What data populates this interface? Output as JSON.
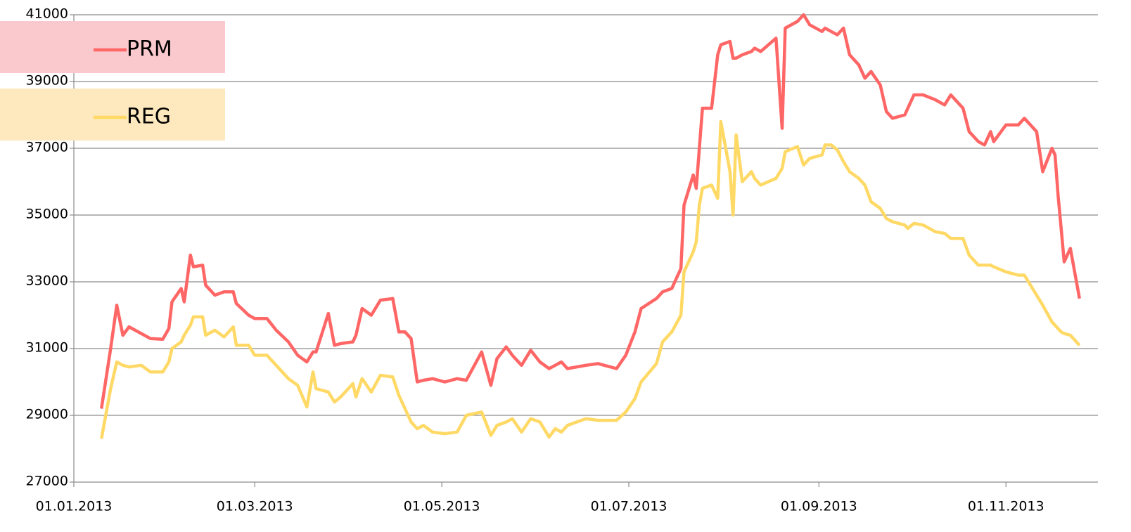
{
  "chart_data": {
    "type": "line",
    "x": [
      "2013-01-10",
      "2013-01-13",
      "2013-01-15",
      "2013-01-17",
      "2013-01-19",
      "2013-01-23",
      "2013-01-26",
      "2013-01-30",
      "2013-02-01",
      "2013-02-02",
      "2013-02-05",
      "2013-02-06",
      "2013-02-08",
      "2013-02-09",
      "2013-02-12",
      "2013-02-13",
      "2013-02-16",
      "2013-02-19",
      "2013-02-22",
      "2013-02-23",
      "2013-02-27",
      "2013-03-01",
      "2013-03-05",
      "2013-03-08",
      "2013-03-12",
      "2013-03-15",
      "2013-03-18",
      "2013-03-20",
      "2013-03-21",
      "2013-03-25",
      "2013-03-27",
      "2013-03-29",
      "2013-04-02",
      "2013-04-03",
      "2013-04-05",
      "2013-04-08",
      "2013-04-11",
      "2013-04-15",
      "2013-04-17",
      "2013-04-19",
      "2013-04-21",
      "2013-04-23",
      "2013-04-25",
      "2013-04-28",
      "2013-05-02",
      "2013-05-06",
      "2013-05-09",
      "2013-05-14",
      "2013-05-17",
      "2013-05-19",
      "2013-05-22",
      "2013-05-24",
      "2013-05-27",
      "2013-05-30",
      "2013-06-02",
      "2013-06-05",
      "2013-06-07",
      "2013-06-09",
      "2013-06-11",
      "2013-06-17",
      "2013-06-21",
      "2013-06-27",
      "2013-06-30",
      "2013-07-03",
      "2013-07-05",
      "2013-07-10",
      "2013-07-12",
      "2013-07-15",
      "2013-07-18",
      "2013-07-19",
      "2013-07-22",
      "2013-07-23",
      "2013-07-24",
      "2013-07-25",
      "2013-07-28",
      "2013-07-30",
      "2013-07-31",
      "2013-08-03",
      "2013-08-04",
      "2013-08-05",
      "2013-08-07",
      "2013-08-10",
      "2013-08-11",
      "2013-08-13",
      "2013-08-18",
      "2013-08-20",
      "2013-08-21",
      "2013-08-25",
      "2013-08-27",
      "2013-08-29",
      "2013-09-02",
      "2013-09-03",
      "2013-09-05",
      "2013-09-07",
      "2013-09-09",
      "2013-09-11",
      "2013-09-14",
      "2013-09-16",
      "2013-09-18",
      "2013-09-21",
      "2013-09-23",
      "2013-09-25",
      "2013-09-29",
      "2013-09-30",
      "2013-10-02",
      "2013-10-05",
      "2013-10-09",
      "2013-10-12",
      "2013-10-14",
      "2013-10-18",
      "2013-10-20",
      "2013-10-23",
      "2013-10-25",
      "2013-10-27",
      "2013-10-28",
      "2013-11-01",
      "2013-11-05",
      "2013-11-07",
      "2013-11-11",
      "2013-11-13",
      "2013-11-16",
      "2013-11-17",
      "2013-11-18",
      "2013-11-19",
      "2013-11-20",
      "2013-11-22",
      "2013-11-25"
    ],
    "series": [
      {
        "name": "PRM",
        "color": "#ff6666",
        "values": [
          29200,
          31000,
          32300,
          31400,
          31650,
          31450,
          31300,
          31280,
          31600,
          32400,
          32800,
          32400,
          33800,
          33450,
          33500,
          32900,
          32600,
          32700,
          32700,
          32350,
          32000,
          31900,
          31900,
          31550,
          31200,
          30800,
          30600,
          30900,
          30900,
          32050,
          31100,
          31150,
          31200,
          31400,
          32200,
          32000,
          32450,
          32500,
          31500,
          31500,
          31300,
          30000,
          30050,
          30100,
          30000,
          30100,
          30050,
          30900,
          29900,
          30700,
          31050,
          30800,
          30500,
          30950,
          30600,
          30400,
          30500,
          30600,
          30400,
          30500,
          30550,
          30400,
          30800,
          31500,
          32200,
          32500,
          32700,
          32800,
          33400,
          35300,
          36200,
          35800,
          37000,
          38200,
          38200,
          39800,
          40100,
          40200,
          39700,
          39700,
          39800,
          39900,
          40000,
          39900,
          40300,
          37600,
          40600,
          40800,
          41000,
          40700,
          40500,
          40600,
          40500,
          40400,
          40600,
          39800,
          39500,
          39100,
          39300,
          38900,
          38100,
          37900,
          38000,
          38200,
          38600,
          38600,
          38450,
          38300,
          38600,
          38200,
          37500,
          37200,
          37100,
          37500,
          37200,
          37700,
          37700,
          37900,
          37500,
          36300,
          37000,
          36800,
          35600,
          34600,
          33600,
          34000,
          32500
        ]
      },
      {
        "name": "REG",
        "color": "#ffd966",
        "values": [
          28300,
          29800,
          30600,
          30500,
          30450,
          30500,
          30300,
          30300,
          30600,
          31000,
          31200,
          31400,
          31700,
          31950,
          31950,
          31400,
          31550,
          31350,
          31650,
          31100,
          31100,
          30800,
          30800,
          30500,
          30100,
          29900,
          29250,
          30300,
          29800,
          29700,
          29400,
          29550,
          29950,
          29550,
          30100,
          29700,
          30200,
          30150,
          29600,
          29200,
          28800,
          28600,
          28700,
          28500,
          28450,
          28500,
          29000,
          29100,
          28400,
          28700,
          28800,
          28900,
          28500,
          28900,
          28800,
          28350,
          28600,
          28500,
          28700,
          28900,
          28850,
          28850,
          29100,
          29500,
          30000,
          30550,
          31200,
          31500,
          32000,
          33300,
          33900,
          34200,
          35300,
          35800,
          35900,
          35500,
          37800,
          36300,
          35000,
          37400,
          36000,
          36300,
          36100,
          35900,
          36100,
          36400,
          36900,
          37050,
          36500,
          36700,
          36800,
          37100,
          37100,
          36950,
          36600,
          36300,
          36100,
          35900,
          35400,
          35200,
          34900,
          34800,
          34700,
          34600,
          34750,
          34700,
          34500,
          34450,
          34300,
          34300,
          33800,
          33500,
          33500,
          33500,
          33450,
          33300,
          33200,
          33200,
          32600,
          32300,
          31800,
          31700,
          31600,
          31500,
          31450,
          31400,
          31100
        ]
      }
    ],
    "xlim": [
      "2013-01-01",
      "2013-12-01"
    ],
    "xticks": [
      {
        "value": "2013-01-01",
        "label": "01.01.2013"
      },
      {
        "value": "2013-03-01",
        "label": "01.03.2013"
      },
      {
        "value": "2013-05-01",
        "label": "01.05.2013"
      },
      {
        "value": "2013-07-01",
        "label": "01.07.2013"
      },
      {
        "value": "2013-09-01",
        "label": "01.09.2013"
      },
      {
        "value": "2013-11-01",
        "label": "01.11.2013"
      }
    ],
    "ylim": [
      27000,
      41000
    ],
    "yticks": [
      27000,
      29000,
      31000,
      33000,
      35000,
      37000,
      39000,
      41000
    ],
    "grid": true,
    "legend": "top-left"
  }
}
